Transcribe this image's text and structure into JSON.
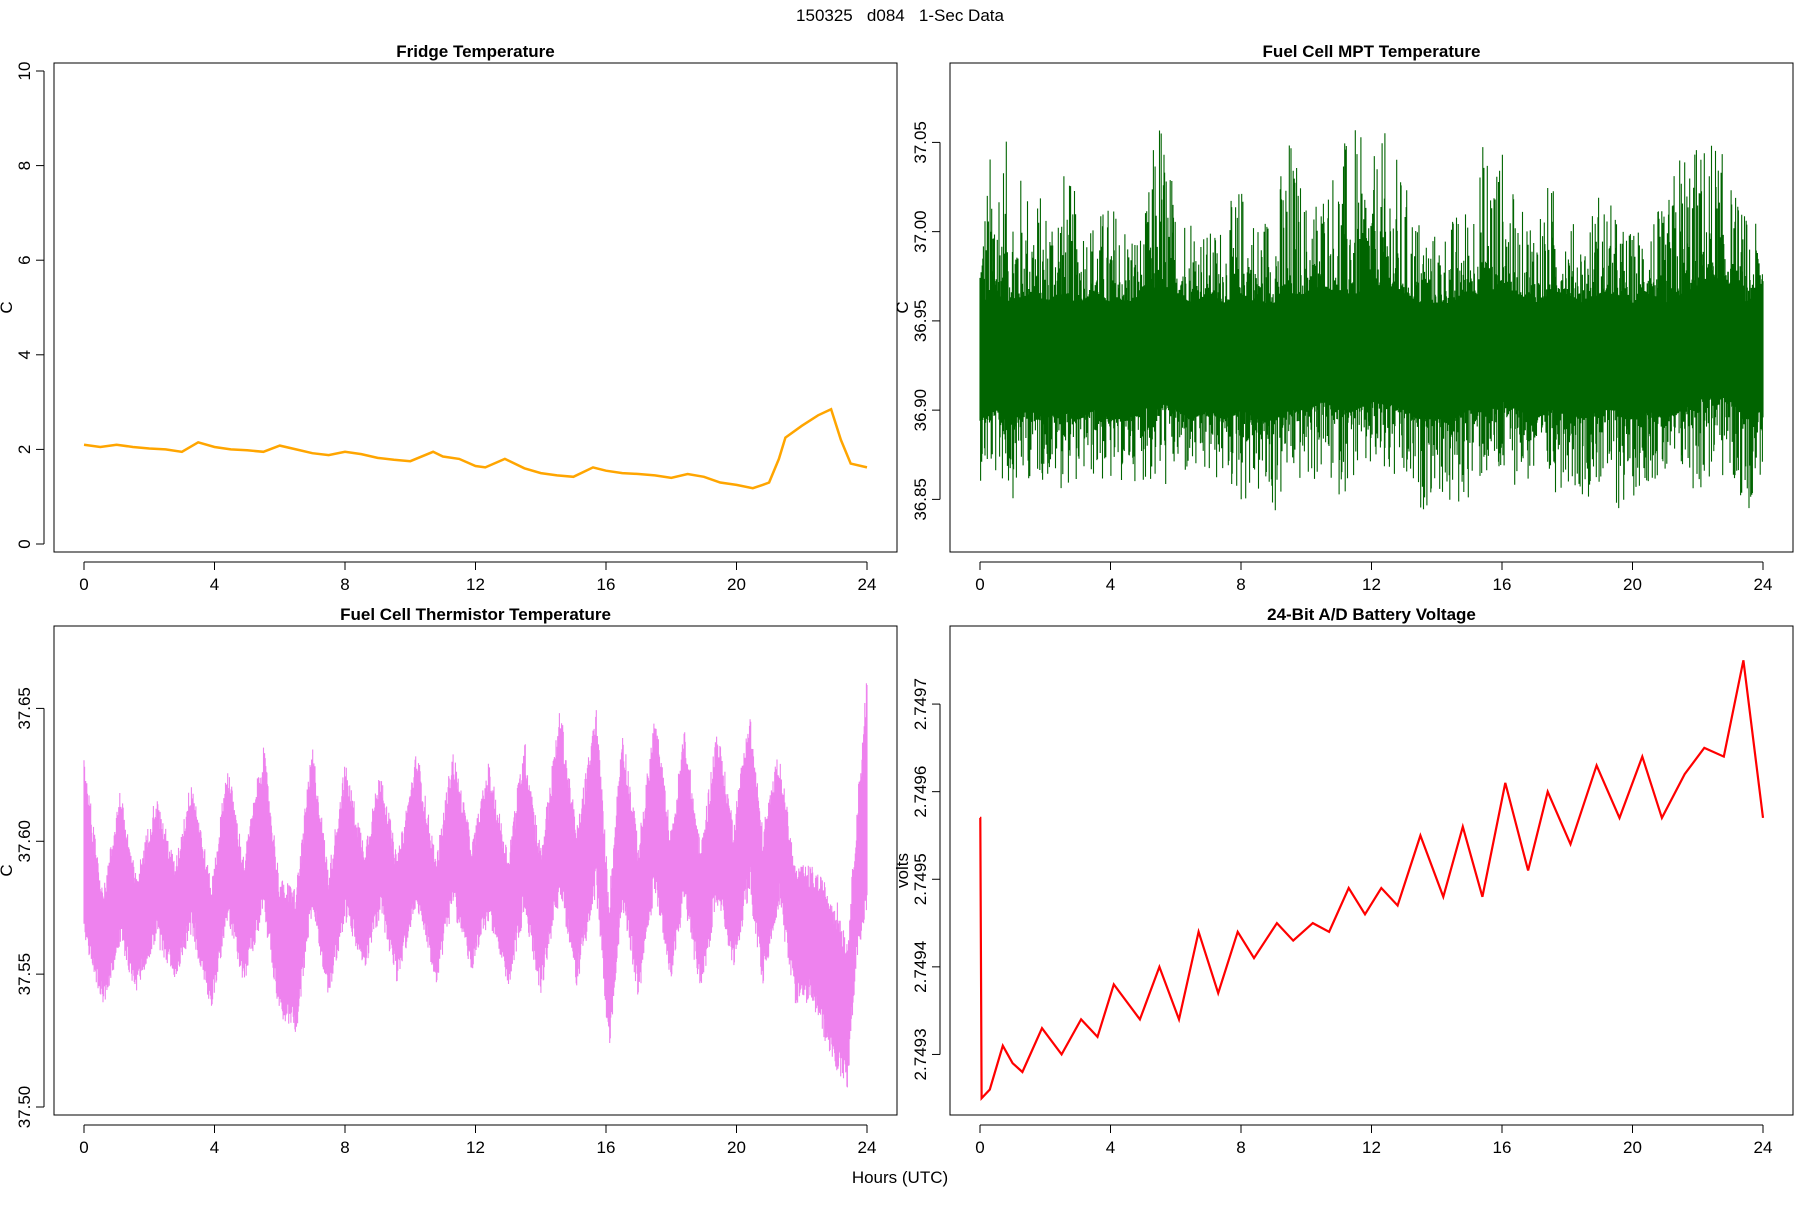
{
  "figure": {
    "title": "150325   d084   1-Sec Data",
    "xlabel": "Hours (UTC)"
  },
  "chart_data": [
    {
      "type": "line",
      "title": "Fridge Temperature",
      "xlabel": "",
      "ylabel": "C",
      "xlim": [
        0,
        24
      ],
      "ylim": [
        0,
        10
      ],
      "xticks": [
        0,
        4,
        8,
        12,
        16,
        20,
        24
      ],
      "yticks": [
        0,
        2,
        4,
        6,
        8,
        10
      ],
      "ytick_labels": [
        "0",
        "2",
        "4",
        "6",
        "8",
        "10"
      ],
      "grid": false,
      "color": "#FFA500",
      "series": [
        {
          "x": [
            0,
            0.5,
            1,
            1.5,
            2,
            2.5,
            3,
            3.5,
            4,
            4.5,
            5,
            5.5,
            6,
            6.5,
            7,
            7.5,
            8,
            8.5,
            9,
            9.5,
            10,
            10.7,
            11,
            11.5,
            12,
            12.3,
            12.9,
            13.5,
            14,
            14.5,
            15,
            15.6,
            16,
            16.5,
            17,
            17.5,
            18,
            18.5,
            19,
            19.5,
            20,
            20.5,
            20.8,
            21,
            21.3,
            21.5,
            22,
            22.5,
            22.9,
            23.2,
            23.5,
            24
          ],
          "y": [
            2.1,
            2.05,
            2.1,
            2.05,
            2.02,
            2.0,
            1.95,
            2.15,
            2.05,
            2.0,
            1.98,
            1.95,
            2.08,
            2.0,
            1.92,
            1.88,
            1.95,
            1.9,
            1.82,
            1.78,
            1.75,
            1.95,
            1.85,
            1.8,
            1.65,
            1.62,
            1.8,
            1.6,
            1.5,
            1.45,
            1.42,
            1.62,
            1.55,
            1.5,
            1.48,
            1.45,
            1.4,
            1.48,
            1.42,
            1.3,
            1.25,
            1.18,
            1.25,
            1.3,
            1.8,
            2.25,
            2.5,
            2.72,
            2.85,
            2.2,
            1.7,
            1.62
          ]
        }
      ]
    },
    {
      "type": "line",
      "title": "Fuel Cell MPT Temperature",
      "xlabel": "",
      "ylabel": "C",
      "xlim": [
        0,
        24
      ],
      "ylim": [
        36.825,
        37.09
      ],
      "xticks": [
        0,
        4,
        8,
        12,
        16,
        20,
        24
      ],
      "yticks": [
        36.85,
        36.9,
        36.95,
        37.0,
        37.05
      ],
      "ytick_labels": [
        "36.85",
        "36.90",
        "36.95",
        "37.00",
        "37.05"
      ],
      "grid": false,
      "color": "#006400",
      "series": [
        {
          "x": [
            0,
            0.5,
            1,
            1.5,
            2,
            2.5,
            3,
            3.5,
            4,
            4.5,
            5,
            5.5,
            6,
            6.5,
            7,
            7.5,
            8,
            8.5,
            9,
            9.5,
            10,
            10.5,
            11,
            11.5,
            12,
            12.5,
            13,
            13.5,
            14,
            14.5,
            15,
            15.5,
            16,
            16.5,
            17,
            17.5,
            18,
            18.5,
            19,
            19.5,
            20,
            20.5,
            21,
            21.5,
            22,
            22.5,
            23,
            23.5,
            24
          ],
          "y_center": [
            36.93,
            36.935,
            36.93,
            36.935,
            36.93,
            36.935,
            36.93,
            36.935,
            36.93,
            36.93,
            36.935,
            36.94,
            36.935,
            36.93,
            36.935,
            36.93,
            36.935,
            36.93,
            36.93,
            36.935,
            36.935,
            36.94,
            36.935,
            36.935,
            36.94,
            36.94,
            36.935,
            36.93,
            36.93,
            36.93,
            36.935,
            36.935,
            36.94,
            36.935,
            36.93,
            36.935,
            36.935,
            36.93,
            36.935,
            36.935,
            36.93,
            36.935,
            36.93,
            36.935,
            36.94,
            36.945,
            36.94,
            36.93,
            36.935
          ],
          "y_min": [
            36.86,
            36.86,
            36.85,
            36.86,
            36.86,
            36.855,
            36.86,
            36.86,
            36.855,
            36.86,
            36.86,
            36.85,
            36.86,
            36.86,
            36.855,
            36.86,
            36.845,
            36.85,
            36.835,
            36.86,
            36.855,
            36.86,
            36.85,
            36.86,
            36.86,
            36.855,
            36.85,
            36.84,
            36.855,
            36.835,
            36.85,
            36.86,
            36.85,
            36.86,
            36.855,
            36.85,
            36.86,
            36.85,
            36.855,
            36.84,
            36.85,
            36.86,
            36.855,
            36.86,
            36.85,
            36.86,
            36.855,
            36.84,
            36.865
          ],
          "y_max": [
            37.01,
            37.07,
            37.04,
            37.03,
            37.02,
            37.04,
            37.02,
            37.01,
            37.02,
            37.01,
            37.0,
            37.08,
            37.02,
            37.02,
            37.0,
            37.01,
            37.03,
            37.01,
            37.02,
            37.06,
            37.02,
            37.03,
            37.05,
            37.06,
            37.04,
            37.06,
            37.03,
            37.01,
            37.0,
            37.01,
            37.02,
            37.06,
            37.05,
            37.01,
            37.02,
            37.03,
            37.01,
            37.0,
            37.03,
            37.01,
            37.0,
            37.02,
            37.01,
            37.06,
            37.05,
            37.06,
            37.03,
            37.01,
            37.0
          ]
        }
      ]
    },
    {
      "type": "line",
      "title": "Fuel Cell Thermistor Temperature",
      "xlabel": "",
      "ylabel": "C",
      "xlim": [
        0,
        24
      ],
      "ylim": [
        37.5,
        37.678
      ],
      "xticks": [
        0,
        4,
        8,
        12,
        16,
        20,
        24
      ],
      "yticks": [
        37.5,
        37.55,
        37.6,
        37.65
      ],
      "ytick_labels": [
        "37.50",
        "37.55",
        "37.60",
        "37.65"
      ],
      "grid": false,
      "color": "#EE82EE",
      "series": [
        {
          "x": [
            0,
            0.3,
            0.6,
            1.1,
            1.6,
            2.2,
            2.8,
            3.3,
            3.9,
            4.4,
            4.9,
            5.5,
            6.0,
            6.5,
            7.0,
            7.5,
            8.0,
            8.6,
            9.1,
            9.6,
            10.2,
            10.8,
            11.3,
            11.9,
            12.4,
            13.0,
            13.5,
            14.0,
            14.6,
            15.1,
            15.7,
            16.1,
            16.5,
            17.0,
            17.5,
            18.0,
            18.4,
            18.9,
            19.4,
            19.9,
            20.4,
            20.8,
            21.3,
            21.8,
            22.3,
            22.7,
            23.1,
            23.4,
            23.7,
            24
          ],
          "y_center": [
            37.6,
            37.575,
            37.56,
            37.59,
            37.565,
            37.59,
            37.57,
            37.595,
            37.56,
            37.6,
            37.57,
            37.605,
            37.56,
            37.555,
            37.605,
            37.565,
            37.6,
            37.575,
            37.6,
            37.57,
            37.605,
            37.57,
            37.605,
            37.575,
            37.6,
            37.57,
            37.605,
            37.57,
            37.615,
            37.575,
            37.615,
            37.55,
            37.61,
            37.57,
            37.615,
            37.575,
            37.61,
            37.57,
            37.61,
            37.58,
            37.615,
            37.575,
            37.605,
            37.565,
            37.565,
            37.555,
            37.545,
            37.535,
            37.585,
            37.62
          ],
          "y_halfwidth": [
            0.035,
            0.03,
            0.022,
            0.03,
            0.022,
            0.028,
            0.022,
            0.03,
            0.024,
            0.03,
            0.024,
            0.032,
            0.026,
            0.028,
            0.032,
            0.024,
            0.03,
            0.024,
            0.028,
            0.024,
            0.03,
            0.024,
            0.03,
            0.025,
            0.03,
            0.026,
            0.034,
            0.028,
            0.036,
            0.03,
            0.036,
            0.03,
            0.034,
            0.03,
            0.034,
            0.028,
            0.034,
            0.028,
            0.034,
            0.028,
            0.035,
            0.03,
            0.03,
            0.026,
            0.026,
            0.03,
            0.032,
            0.028,
            0.03,
            0.045
          ]
        }
      ]
    },
    {
      "type": "line",
      "title": "24-Bit A/D Battery Voltage",
      "xlabel": "",
      "ylabel": "volts",
      "xlim": [
        0,
        24
      ],
      "ylim": [
        2.74924,
        2.74978
      ],
      "xticks": [
        0,
        4,
        8,
        12,
        16,
        20,
        24
      ],
      "yticks": [
        2.7493,
        2.7494,
        2.7495,
        2.7496,
        2.7497
      ],
      "ytick_labels": [
        "2.7493",
        "2.7494",
        "2.7495",
        "2.7496",
        "2.7497"
      ],
      "grid": false,
      "color": "#FF0000",
      "series": [
        {
          "x": [
            0,
            0.01,
            0.05,
            0.3,
            0.7,
            1.0,
            1.3,
            1.9,
            2.5,
            3.1,
            3.6,
            4.1,
            4.9,
            5.5,
            6.1,
            6.7,
            7.3,
            7.9,
            8.4,
            9.1,
            9.6,
            10.2,
            10.7,
            11.3,
            11.8,
            12.3,
            12.8,
            13.5,
            14.2,
            14.8,
            15.4,
            16.1,
            16.8,
            17.4,
            18.1,
            18.9,
            19.6,
            20.3,
            20.9,
            21.6,
            22.2,
            22.8,
            23.4,
            24
          ],
          "y": [
            2.74957,
            2.74957,
            2.74925,
            2.74926,
            2.74931,
            2.74929,
            2.74928,
            2.74933,
            2.7493,
            2.74934,
            2.74932,
            2.74938,
            2.74934,
            2.7494,
            2.74934,
            2.74944,
            2.74937,
            2.74944,
            2.74941,
            2.74945,
            2.74943,
            2.74945,
            2.74944,
            2.74949,
            2.74946,
            2.74949,
            2.74947,
            2.74955,
            2.74948,
            2.74956,
            2.74948,
            2.74961,
            2.74951,
            2.7496,
            2.74954,
            2.74963,
            2.74957,
            2.74964,
            2.74957,
            2.74962,
            2.74965,
            2.74964,
            2.74975,
            2.74957
          ]
        }
      ]
    }
  ]
}
